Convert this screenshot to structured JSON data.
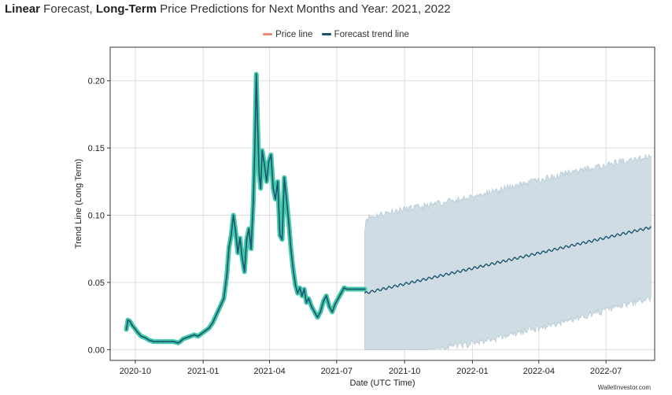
{
  "title": {
    "part1_bold": "Linear",
    "part2": " Forecast, ",
    "part3_bold": "Long-Term",
    "part4": " Price Predictions for Next Months and Year: 2021, 2022"
  },
  "watermark": "WalletInvestor.com",
  "colors": {
    "price_halo": "#40c8a8",
    "price_line": "#1c5470",
    "forecast_line": "#1c5470",
    "band_fill": "#cfdce4",
    "band_edge": "#b8cad5",
    "grid": "#dddddd",
    "legend_price": "#f08878",
    "legend_forecast": "#1c5470"
  },
  "chart_data": {
    "type": "line",
    "title": "",
    "xlabel": "Date (UTC Time)",
    "ylabel": "Trend Line (Long Term)",
    "ylim": [
      -0.008,
      0.225
    ],
    "xlim": [
      "2020-08-28",
      "2022-09-05"
    ],
    "grid": true,
    "legend": {
      "placement": "top-center",
      "entries": [
        "Price line",
        "Forecast trend line"
      ]
    },
    "x_ticks": [
      "2020-10-01",
      "2021-01-01",
      "2021-04-01",
      "2021-07-01",
      "2021-10-01",
      "2022-01-01",
      "2022-04-01",
      "2022-07-01"
    ],
    "x_tick_labels": [
      "2020-10",
      "2021-01",
      "2021-04",
      "2021-07",
      "2021-10",
      "2022-01",
      "2022-04",
      "2022-07"
    ],
    "y_ticks": [
      0.0,
      0.05,
      0.1,
      0.15,
      0.2
    ],
    "y_tick_labels": [
      "0.00",
      "0.05",
      "0.10",
      "0.15",
      "0.20"
    ],
    "series": [
      {
        "name": "Price line",
        "x": [
          "2020-09-19",
          "2020-09-21",
          "2020-09-24",
          "2020-09-27",
          "2020-09-30",
          "2020-10-04",
          "2020-10-09",
          "2020-10-14",
          "2020-10-20",
          "2020-10-26",
          "2020-11-01",
          "2020-11-08",
          "2020-11-15",
          "2020-11-22",
          "2020-11-28",
          "2020-12-01",
          "2020-12-05",
          "2020-12-10",
          "2020-12-15",
          "2020-12-20",
          "2020-12-25",
          "2020-12-30",
          "2021-01-04",
          "2021-01-09",
          "2021-01-14",
          "2021-01-19",
          "2021-01-24",
          "2021-01-29",
          "2021-02-02",
          "2021-02-05",
          "2021-02-08",
          "2021-02-11",
          "2021-02-14",
          "2021-02-17",
          "2021-02-20",
          "2021-02-23",
          "2021-02-26",
          "2021-03-01",
          "2021-03-04",
          "2021-03-07",
          "2021-03-10",
          "2021-03-12",
          "2021-03-14",
          "2021-03-16",
          "2021-03-18",
          "2021-03-20",
          "2021-03-22",
          "2021-03-25",
          "2021-03-28",
          "2021-03-31",
          "2021-04-03",
          "2021-04-06",
          "2021-04-09",
          "2021-04-12",
          "2021-04-15",
          "2021-04-18",
          "2021-04-21",
          "2021-04-24",
          "2021-04-27",
          "2021-04-30",
          "2021-05-03",
          "2021-05-06",
          "2021-05-09",
          "2021-05-12",
          "2021-05-15",
          "2021-05-18",
          "2021-05-21",
          "2021-05-24",
          "2021-05-28",
          "2021-06-01",
          "2021-06-05",
          "2021-06-09",
          "2021-06-13",
          "2021-06-17",
          "2021-06-21",
          "2021-06-25",
          "2021-06-29",
          "2021-07-03",
          "2021-07-07",
          "2021-07-11",
          "2021-07-15",
          "2021-07-19",
          "2021-07-23",
          "2021-07-27",
          "2021-07-31",
          "2021-08-04",
          "2021-08-08"
        ],
        "values": [
          0.015,
          0.022,
          0.021,
          0.018,
          0.016,
          0.013,
          0.01,
          0.009,
          0.007,
          0.006,
          0.006,
          0.006,
          0.006,
          0.006,
          0.005,
          0.006,
          0.008,
          0.009,
          0.01,
          0.011,
          0.01,
          0.012,
          0.014,
          0.016,
          0.02,
          0.026,
          0.032,
          0.038,
          0.055,
          0.076,
          0.085,
          0.1,
          0.088,
          0.072,
          0.083,
          0.068,
          0.058,
          0.082,
          0.09,
          0.075,
          0.11,
          0.15,
          0.205,
          0.165,
          0.13,
          0.12,
          0.148,
          0.138,
          0.125,
          0.14,
          0.145,
          0.12,
          0.112,
          0.125,
          0.085,
          0.082,
          0.128,
          0.112,
          0.095,
          0.075,
          0.06,
          0.048,
          0.042,
          0.046,
          0.04,
          0.045,
          0.035,
          0.038,
          0.032,
          0.028,
          0.024,
          0.028,
          0.036,
          0.04,
          0.032,
          0.028,
          0.034,
          0.038,
          0.042,
          0.046,
          0.045,
          0.045,
          0.045,
          0.045,
          0.045,
          0.045,
          0.045
        ]
      },
      {
        "name": "Forecast trend line",
        "x": [
          "2021-08-08",
          "2022-08-31"
        ],
        "values": [
          0.042,
          0.091
        ]
      }
    ],
    "forecast_band": {
      "x": [
        "2021-08-08",
        "2021-08-10",
        "2021-09-15",
        "2021-11-01",
        "2021-12-15",
        "2022-02-01",
        "2022-03-15",
        "2022-05-01",
        "2022-06-15",
        "2022-08-01",
        "2022-08-31"
      ],
      "upper": [
        0.09,
        0.098,
        0.103,
        0.107,
        0.112,
        0.118,
        0.124,
        0.13,
        0.136,
        0.141,
        0.144
      ],
      "lower": [
        0.0,
        0.0,
        0.0,
        0.0,
        0.003,
        0.008,
        0.014,
        0.02,
        0.027,
        0.034,
        0.038
      ]
    }
  }
}
